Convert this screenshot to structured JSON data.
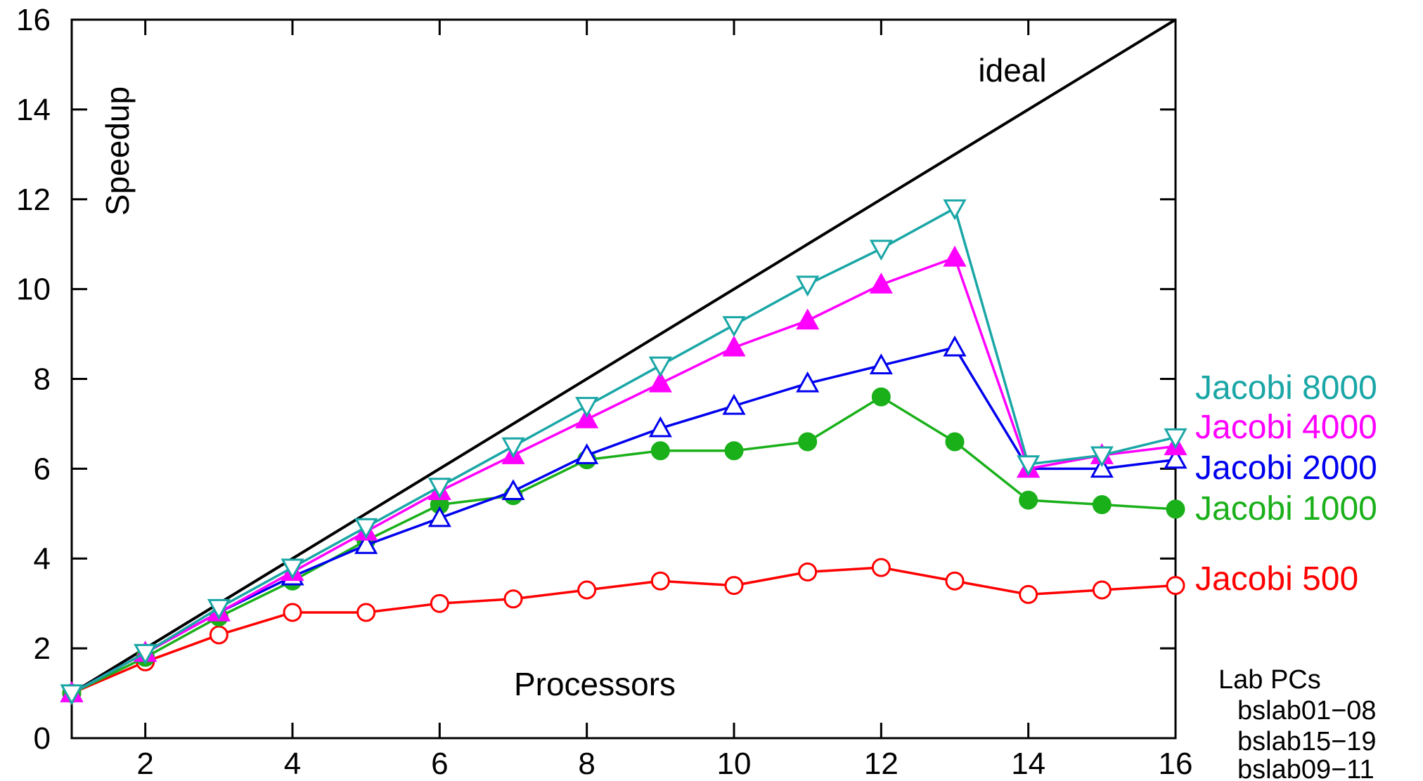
{
  "chart_data": {
    "type": "line",
    "xlabel": "Processors",
    "ylabel": "Speedup",
    "xlim": [
      1,
      16
    ],
    "ylim": [
      0,
      16
    ],
    "xticks": [
      2,
      4,
      6,
      8,
      10,
      12,
      14,
      16
    ],
    "yticks": [
      0,
      2,
      4,
      6,
      8,
      10,
      12,
      14,
      16
    ],
    "grid": false,
    "legend_placement": "right",
    "ideal": {
      "label": "ideal",
      "x": [
        1,
        16
      ],
      "y": [
        1,
        16
      ],
      "color": "#000000"
    },
    "x": [
      1,
      2,
      3,
      4,
      5,
      6,
      7,
      8,
      9,
      10,
      11,
      12,
      13,
      14,
      15,
      16
    ],
    "series": [
      {
        "name": "Jacobi 8000",
        "color": "#1aa6a6",
        "marker": "triangle-down-open",
        "values": [
          1.0,
          1.9,
          2.9,
          3.8,
          4.7,
          5.6,
          6.5,
          7.4,
          8.3,
          9.2,
          10.1,
          10.9,
          11.8,
          6.1,
          6.3,
          6.7
        ]
      },
      {
        "name": "Jacobi 4000",
        "color": "#ff00ff",
        "marker": "triangle-up-filled",
        "values": [
          1.0,
          1.9,
          2.8,
          3.7,
          4.6,
          5.5,
          6.3,
          7.1,
          7.9,
          8.7,
          9.3,
          10.1,
          10.7,
          6.0,
          6.3,
          6.5
        ]
      },
      {
        "name": "Jacobi 2000",
        "color": "#0000ee",
        "marker": "triangle-up-open",
        "values": [
          1.0,
          1.9,
          2.8,
          3.6,
          4.3,
          4.9,
          5.5,
          6.3,
          6.9,
          7.4,
          7.9,
          8.3,
          8.7,
          6.0,
          6.0,
          6.2
        ]
      },
      {
        "name": "Jacobi 1000",
        "color": "#1ab01a",
        "marker": "circle-filled",
        "values": [
          1.0,
          1.8,
          2.7,
          3.5,
          4.4,
          5.2,
          5.4,
          6.2,
          6.4,
          6.4,
          6.6,
          7.6,
          6.6,
          5.3,
          5.2,
          5.1
        ]
      },
      {
        "name": "Jacobi 500",
        "color": "#ff0000",
        "marker": "circle-open",
        "values": [
          1.0,
          1.7,
          2.3,
          2.8,
          2.8,
          3.0,
          3.1,
          3.3,
          3.5,
          3.4,
          3.7,
          3.8,
          3.5,
          3.2,
          3.3,
          3.4
        ]
      }
    ],
    "annotations": [
      "Lab PCs",
      "bslab01−08",
      "bslab15−19",
      "bslab09−11"
    ]
  }
}
